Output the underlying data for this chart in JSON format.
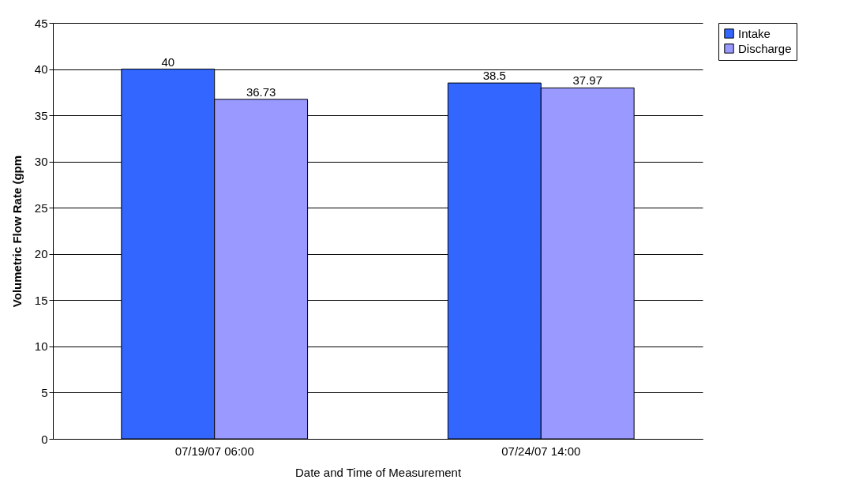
{
  "chart_data": {
    "type": "bar",
    "xlabel": "Date and Time of Measurement",
    "ylabel": "Volumetric Flow Rate (gpm",
    "categories": [
      "07/19/07 06:00",
      "07/24/07 14:00"
    ],
    "series": [
      {
        "name": "Intake",
        "color": "#3366ff",
        "values": [
          40,
          38.5
        ]
      },
      {
        "name": "Discharge",
        "color": "#9999ff",
        "values": [
          36.73,
          37.97
        ]
      }
    ],
    "ylim": [
      0,
      45
    ],
    "yticks": [
      0,
      5,
      10,
      15,
      20,
      25,
      30,
      35,
      40,
      45
    ],
    "grid": "y",
    "legend": "right",
    "data_labels": true
  }
}
